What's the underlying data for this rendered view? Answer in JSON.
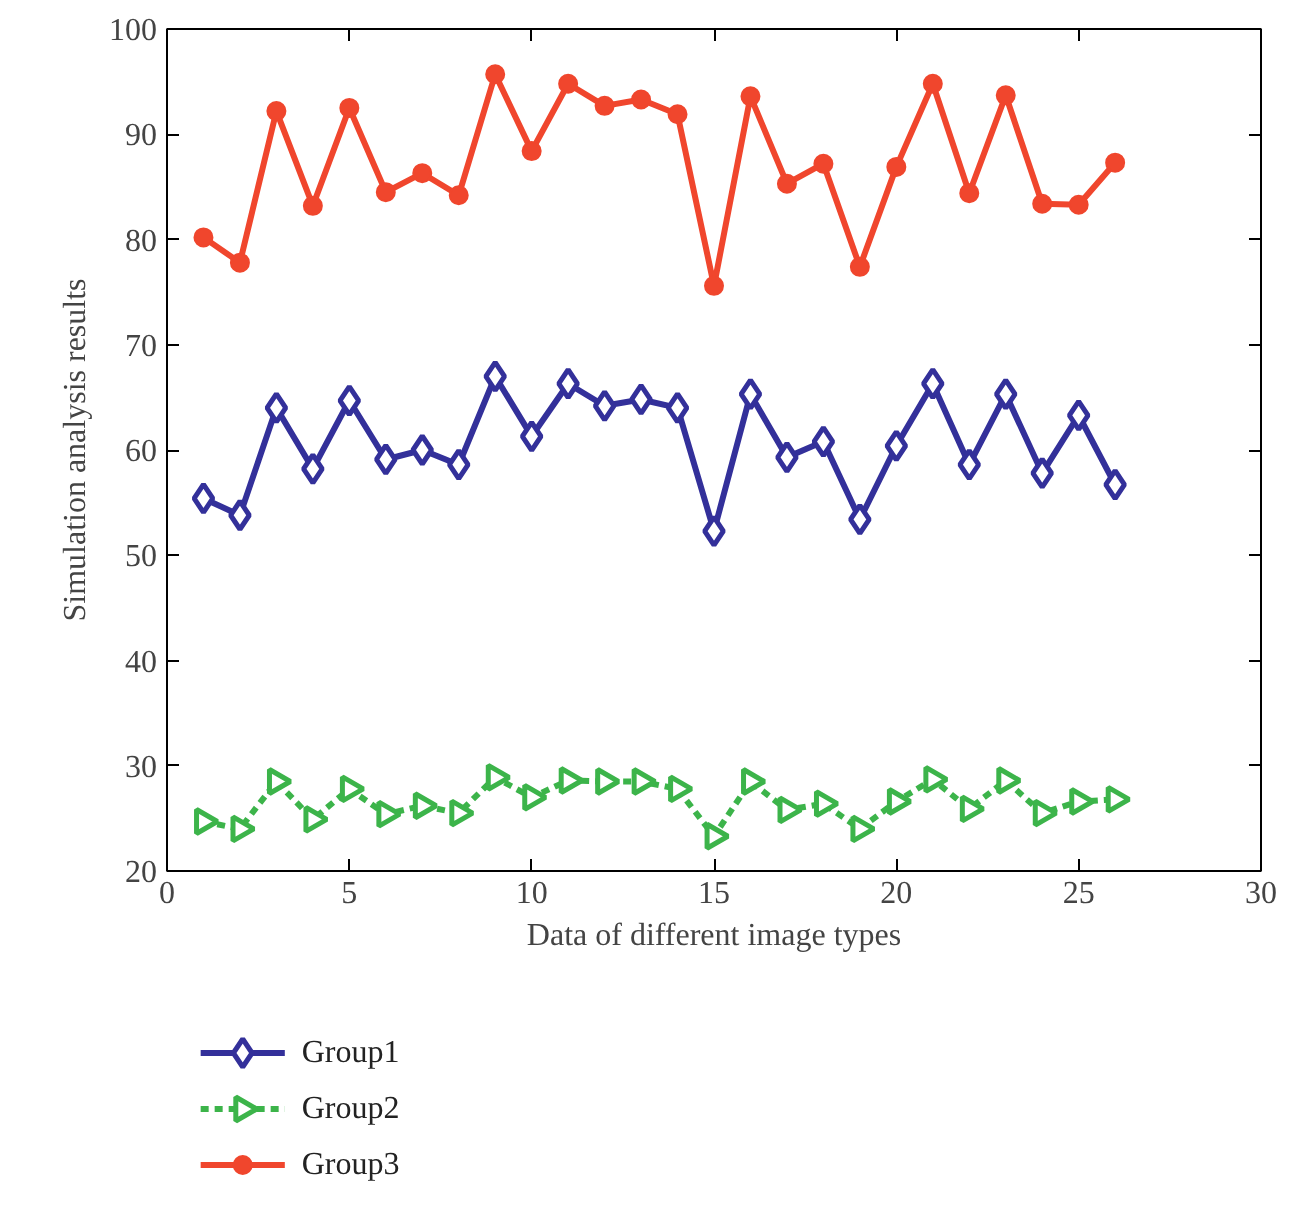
{
  "chart_data": {
    "type": "line",
    "xlabel": "Data of different image types",
    "ylabel": "Simulation analysis results",
    "x": [
      1,
      2,
      3,
      4,
      5,
      6,
      7,
      8,
      9,
      10,
      11,
      12,
      13,
      14,
      15,
      16,
      17,
      18,
      19,
      20,
      21,
      22,
      23,
      24,
      25,
      26
    ],
    "series": [
      {
        "name": "Group1",
        "color": "#33309a",
        "marker": "diamond",
        "line_style": "solid",
        "values": [
          55.4,
          53.8,
          64.0,
          58.2,
          64.7,
          59.1,
          60.0,
          58.6,
          67.0,
          61.3,
          66.3,
          64.2,
          64.8,
          64.0,
          52.3,
          65.3,
          59.3,
          60.8,
          53.4,
          60.4,
          66.3,
          58.6,
          65.3,
          57.8,
          63.3,
          56.7
        ]
      },
      {
        "name": "Group2",
        "color": "#3cb44a",
        "marker": "triangle",
        "line_style": "dashed",
        "values": [
          24.7,
          24.0,
          28.5,
          24.9,
          27.8,
          25.4,
          26.2,
          25.5,
          28.9,
          27.0,
          28.6,
          28.5,
          28.5,
          27.8,
          23.3,
          28.5,
          25.8,
          26.4,
          24.0,
          26.6,
          28.7,
          25.9,
          28.6,
          25.5,
          26.6,
          26.8
        ]
      },
      {
        "name": "Group3",
        "color": "#f0462d",
        "marker": "circle",
        "line_style": "solid",
        "values": [
          80.2,
          77.8,
          92.2,
          83.2,
          92.5,
          84.5,
          86.3,
          84.2,
          95.7,
          88.4,
          94.8,
          92.7,
          93.3,
          91.9,
          75.6,
          93.6,
          85.3,
          87.2,
          77.4,
          86.9,
          94.8,
          84.4,
          93.7,
          83.4,
          83.3,
          87.3
        ]
      }
    ],
    "xlim": [
      0,
      30
    ],
    "xticks": [
      0,
      5,
      10,
      15,
      20,
      25,
      30
    ],
    "ylim": [
      20,
      100
    ],
    "yticks": [
      20,
      30,
      40,
      50,
      60,
      70,
      80,
      90,
      100
    ],
    "grid": false,
    "legend": "bottom left"
  }
}
